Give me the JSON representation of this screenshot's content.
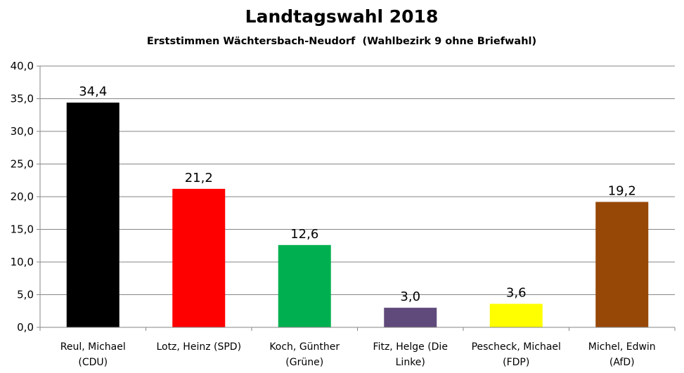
{
  "chart_data": {
    "type": "bar",
    "title": "Landtagswahl 2018",
    "subtitle": "Erststimmen Wächtersbach-Neudorf  (Wahlbezirk 9 ohne Briefwahl)",
    "xlabel": "",
    "ylabel": "",
    "ylim": [
      0,
      40
    ],
    "ytick_step": 5,
    "yticks": [
      "0,0",
      "5,0",
      "10,0",
      "15,0",
      "20,0",
      "25,0",
      "30,0",
      "35,0",
      "40,0"
    ],
    "grid": true,
    "legend": "none",
    "categories": [
      [
        "Reul, Michael",
        "(CDU)"
      ],
      [
        "Lotz, Heinz (SPD)",
        ""
      ],
      [
        "Koch, Günther",
        "(Grüne)"
      ],
      [
        "Fitz, Helge (Die",
        "Linke)"
      ],
      [
        "Pescheck, Michael",
        "(FDP)"
      ],
      [
        "Michel, Edwin",
        "(AfD)"
      ]
    ],
    "values": [
      34.4,
      21.2,
      12.6,
      3.0,
      3.6,
      19.2
    ],
    "data_labels": [
      "34,4",
      "21,2",
      "12,6",
      "3,0",
      "3,6",
      "19,2"
    ],
    "colors": [
      "#000000",
      "#ff0000",
      "#00b050",
      "#604a7b",
      "#ffff00",
      "#974706"
    ]
  }
}
